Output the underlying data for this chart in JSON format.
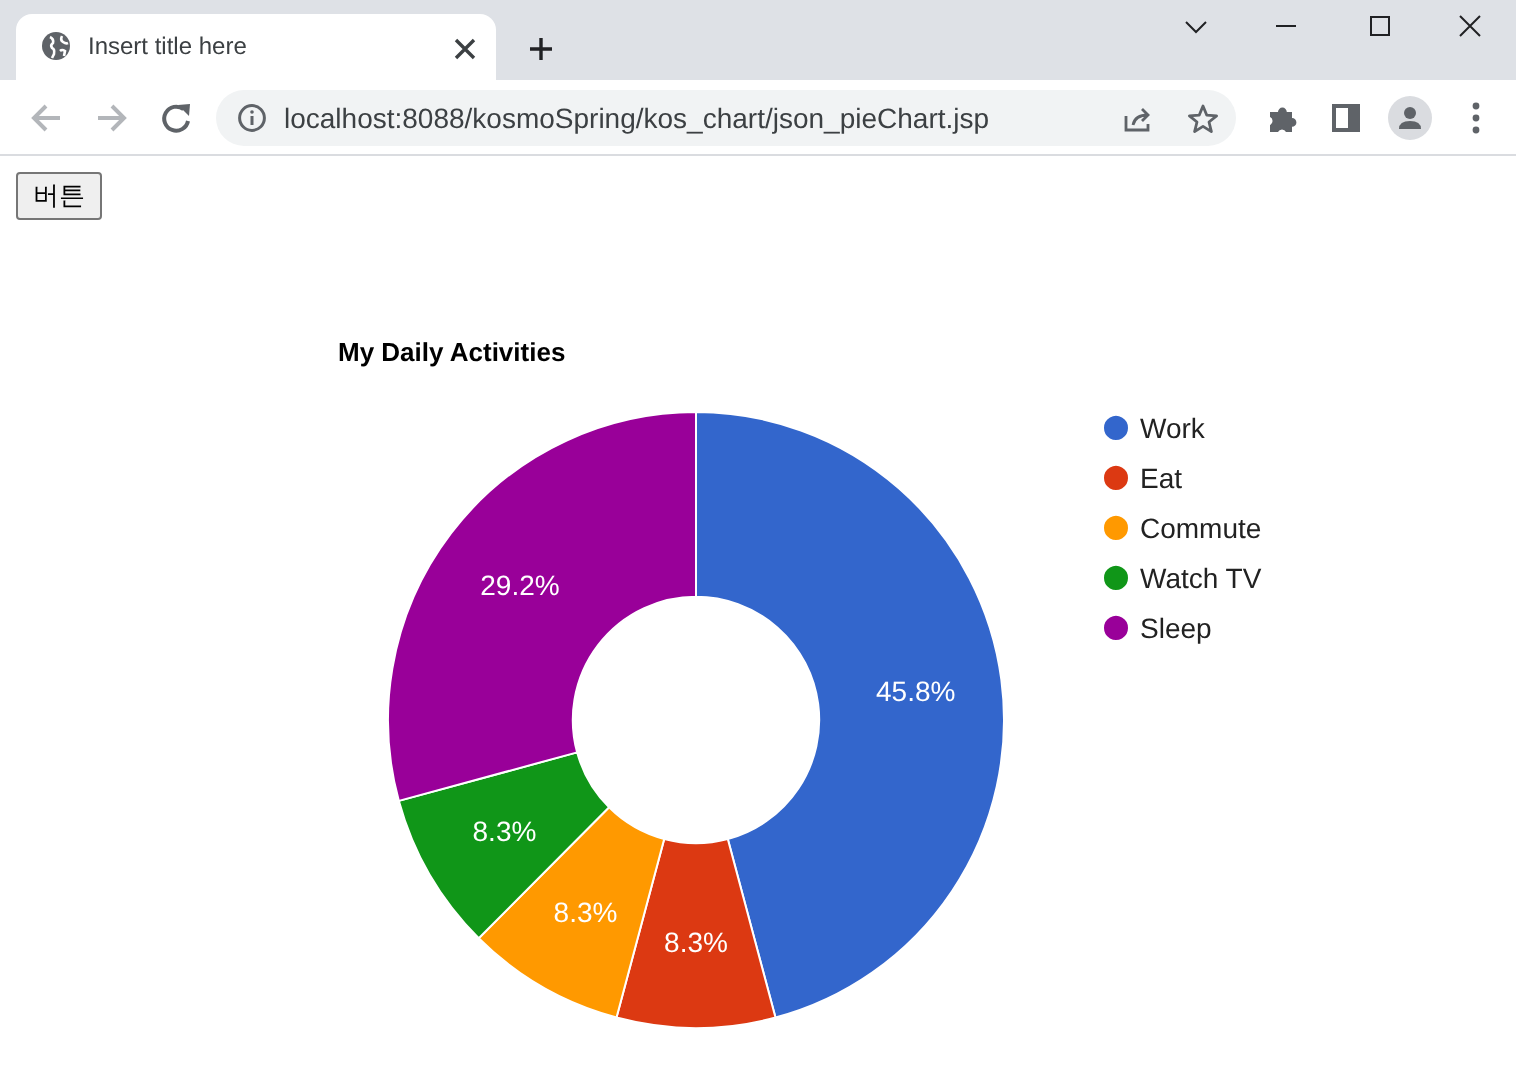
{
  "chart_data": {
    "type": "donut",
    "title": "My Daily Activities",
    "categories": [
      "Work",
      "Eat",
      "Commute",
      "Watch TV",
      "Sleep"
    ],
    "values": [
      45.8,
      8.3,
      8.3,
      8.3,
      29.2
    ],
    "colors": [
      "#3366cc",
      "#dc3912",
      "#ff9900",
      "#109618",
      "#990099"
    ],
    "value_labels": [
      "45.8%",
      "8.3%",
      "8.3%",
      "8.3%",
      "29.2%"
    ],
    "legend": "top right",
    "annotations": [
      "Insert title here",
      "localhost:8088/kosmoSpring/kos_chart/json_pieChart.jsp",
      "버튼"
    ]
  }
}
